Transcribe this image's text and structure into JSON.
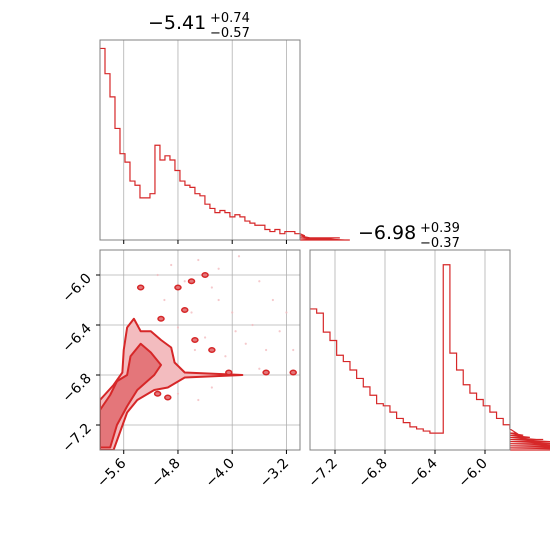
{
  "colors": {
    "series": "#d62728",
    "fill_dark": "#e4767a",
    "fill_light": "#f3bcbf",
    "grid": "#b0b0b0",
    "frame": "#808080"
  },
  "chart_data": {
    "type": "corner",
    "parameters": [
      {
        "median": "−5.41",
        "plus": "+0.74",
        "minus": "−0.57",
        "range": [
          -5.95,
          -3.0
        ],
        "ticks": [
          -5.6,
          -4.8,
          -4.0,
          -3.2
        ],
        "tick_labels": [
          "−5.6",
          "−4.8",
          "−4.0",
          "−3.2"
        ],
        "hist_edges_start": -5.95,
        "hist_bin_width": 0.0737,
        "hist_counts": [
          0.91,
          0.79,
          0.68,
          0.53,
          0.41,
          0.37,
          0.28,
          0.26,
          0.2,
          0.2,
          0.22,
          0.45,
          0.38,
          0.4,
          0.38,
          0.33,
          0.28,
          0.26,
          0.25,
          0.22,
          0.21,
          0.17,
          0.15,
          0.13,
          0.14,
          0.13,
          0.11,
          0.12,
          0.11,
          0.09,
          0.08,
          0.07,
          0.07,
          0.05,
          0.04,
          0.05,
          0.03,
          0.04,
          0.04,
          0.03,
          0.03,
          0.02,
          0.01,
          0.01,
          0.01,
          0.01,
          0,
          0.01,
          0.01,
          0.0,
          0.0
        ]
      },
      {
        "median": "−6.98",
        "plus": "+0.39",
        "minus": "−0.37",
        "range": [
          -7.4,
          -5.8
        ],
        "ticks": [
          -7.2,
          -6.8,
          -6.4,
          -6.0
        ],
        "tick_labels": [
          "−7.2",
          "−6.8",
          "−6.4",
          "−6.0"
        ],
        "hist_edges_start": -7.4,
        "hist_bin_width": 0.0533,
        "hist_counts": [
          0.67,
          0.65,
          0.56,
          0.52,
          0.45,
          0.42,
          0.38,
          0.34,
          0.3,
          0.26,
          0.22,
          0.21,
          0.18,
          0.15,
          0.13,
          0.11,
          0.1,
          0.09,
          0.08,
          0.08,
          0.88,
          0.46,
          0.38,
          0.31,
          0.27,
          0.24,
          0.21,
          0.18,
          0.15,
          0.12,
          0.1,
          0.08,
          0.07,
          0.06,
          0.05,
          0.05,
          0.04,
          0.04,
          0.03,
          0.03,
          0.02,
          0.02,
          0.02,
          0.01,
          0.01,
          0.01,
          0.01,
          0.0,
          0.0,
          0.0
        ]
      }
    ],
    "y_axis": {
      "range": [
        -7.4,
        -5.8
      ],
      "ticks": [
        -6.0,
        -6.4,
        -6.8,
        -7.2
      ],
      "tick_labels": [
        "−6.0",
        "−6.4",
        "−6.8",
        "−7.2"
      ]
    },
    "contour_regions": [
      {
        "level": "inner",
        "points": [
          [
            -5.95,
            -7.38
          ],
          [
            -5.95,
            -7.08
          ],
          [
            -5.8,
            -6.96
          ],
          [
            -5.7,
            -6.85
          ],
          [
            -5.55,
            -6.8
          ],
          [
            -5.5,
            -6.65
          ],
          [
            -5.35,
            -6.55
          ],
          [
            -5.2,
            -6.62
          ],
          [
            -5.05,
            -6.72
          ],
          [
            -5.15,
            -6.8
          ],
          [
            -5.4,
            -6.92
          ],
          [
            -5.55,
            -7.05
          ],
          [
            -5.7,
            -7.2
          ],
          [
            -5.8,
            -7.38
          ]
        ]
      },
      {
        "level": "outer",
        "points": [
          [
            -5.95,
            -7.4
          ],
          [
            -5.95,
            -7.0
          ],
          [
            -5.75,
            -6.88
          ],
          [
            -5.62,
            -6.78
          ],
          [
            -5.6,
            -6.6
          ],
          [
            -5.55,
            -6.42
          ],
          [
            -5.45,
            -6.35
          ],
          [
            -5.35,
            -6.45
          ],
          [
            -5.2,
            -6.45
          ],
          [
            -5.05,
            -6.52
          ],
          [
            -4.9,
            -6.58
          ],
          [
            -4.85,
            -6.7
          ],
          [
            -4.7,
            -6.78
          ],
          [
            -3.85,
            -6.8
          ],
          [
            -4.7,
            -6.82
          ],
          [
            -4.95,
            -6.9
          ],
          [
            -5.15,
            -6.92
          ],
          [
            -5.4,
            -7.0
          ],
          [
            -5.55,
            -7.1
          ],
          [
            -5.65,
            -7.25
          ],
          [
            -5.75,
            -7.4
          ]
        ]
      }
    ],
    "scatter_points": [
      [
        -4.9,
        -5.92
      ],
      [
        -4.5,
        -5.88
      ],
      [
        -4.2,
        -5.95
      ],
      [
        -3.9,
        -5.85
      ],
      [
        -4.7,
        -6.05
      ],
      [
        -4.3,
        -6.1
      ],
      [
        -3.6,
        -6.05
      ],
      [
        -3.4,
        -6.2
      ],
      [
        -4.6,
        -6.3
      ],
      [
        -4.0,
        -6.3
      ],
      [
        -3.7,
        -6.4
      ],
      [
        -3.3,
        -6.45
      ],
      [
        -4.4,
        -6.5
      ],
      [
        -3.8,
        -6.55
      ],
      [
        -3.5,
        -6.6
      ],
      [
        -4.1,
        -6.65
      ],
      [
        -3.6,
        -6.75
      ],
      [
        -4.3,
        -6.9
      ],
      [
        -4.8,
        -6.95
      ],
      [
        -4.5,
        -7.0
      ],
      [
        -5.1,
        -6.0
      ],
      [
        -5.0,
        -6.2
      ],
      [
        -3.2,
        -6.3
      ],
      [
        -4.8,
        -6.42
      ],
      [
        -3.95,
        -6.45
      ],
      [
        -4.2,
        -6.2
      ],
      [
        -3.1,
        -6.6
      ],
      [
        -4.55,
        -6.6
      ]
    ],
    "blobs": [
      [
        -5.35,
        -6.1
      ],
      [
        -4.8,
        -6.1
      ],
      [
        -4.6,
        -6.05
      ],
      [
        -4.4,
        -6.0
      ],
      [
        -5.05,
        -6.35
      ],
      [
        -4.7,
        -6.28
      ],
      [
        -4.55,
        -6.52
      ],
      [
        -4.3,
        -6.6
      ],
      [
        -4.05,
        -6.78
      ],
      [
        -3.5,
        -6.78
      ],
      [
        -3.1,
        -6.78
      ],
      [
        -5.1,
        -6.95
      ],
      [
        -4.95,
        -6.98
      ]
    ]
  }
}
